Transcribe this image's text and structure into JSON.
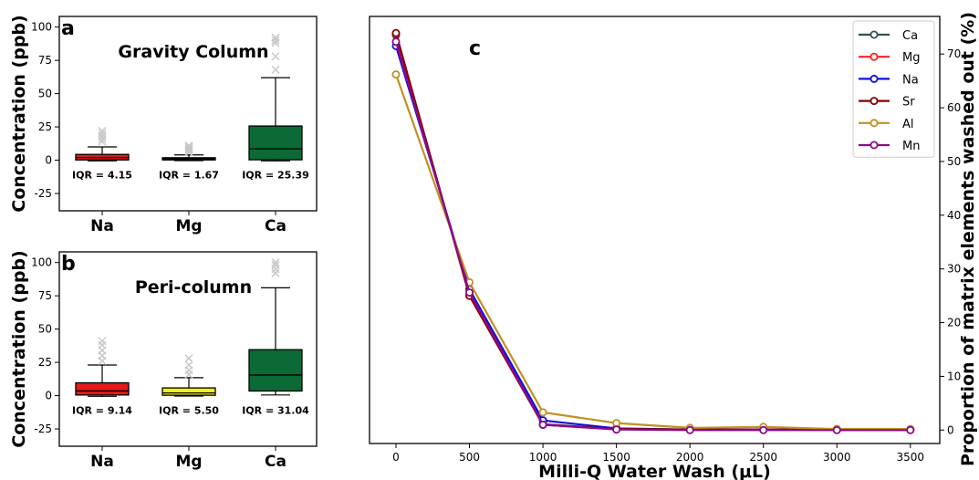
{
  "chart_data": [
    {
      "panel": "a",
      "type": "box",
      "title": "Gravity Column",
      "ylabel": "Concentration (ppb)",
      "ylim": [
        -38,
        108
      ],
      "yticks": [
        "-25",
        "0",
        "25",
        "50",
        "75",
        "100"
      ],
      "categories": [
        {
          "name": "Na",
          "color": "#e41a1c",
          "q1": 0.2,
          "median": 2.0,
          "q3": 4.35,
          "whisker_low": -0.5,
          "whisker_high": 10.0,
          "outliers": [
            14,
            16,
            18,
            20,
            22
          ],
          "iqr_label": "IQR = 4.15"
        },
        {
          "name": "Mg",
          "color": "#111111",
          "q1": 0.2,
          "median": 0.8,
          "q3": 1.87,
          "whisker_low": -0.3,
          "whisker_high": 4.0,
          "outliers": [
            6,
            7,
            8,
            9,
            10,
            11
          ],
          "iqr_label": "IQR = 1.67"
        },
        {
          "name": "Ca",
          "color": "#0b6a35",
          "q1": 0.3,
          "median": 8.5,
          "q3": 25.69,
          "whisker_low": -0.5,
          "whisker_high": 62.0,
          "outliers": [
            68,
            78,
            88,
            90,
            92
          ],
          "iqr_label": "IQR = 25.39"
        }
      ]
    },
    {
      "panel": "b",
      "type": "box",
      "title": "Peri-column",
      "ylabel": "Concentration (ppb)",
      "ylim": [
        -38,
        108
      ],
      "yticks": [
        "-25",
        "0",
        "25",
        "50",
        "75",
        "100"
      ],
      "categories": [
        {
          "name": "Na",
          "color": "#e41a1c",
          "q1": 0.5,
          "median": 3.5,
          "q3": 9.64,
          "whisker_low": -0.5,
          "whisker_high": 23.0,
          "outliers": [
            26,
            30,
            34,
            38,
            41
          ],
          "iqr_label": "IQR = 9.14"
        },
        {
          "name": "Mg",
          "color": "#f5f014",
          "q1": 0.3,
          "median": 2.0,
          "q3": 5.8,
          "whisker_low": -0.3,
          "whisker_high": 13.5,
          "outliers": [
            16,
            19,
            23,
            28
          ],
          "iqr_label": "IQR = 5.50"
        },
        {
          "name": "Ca",
          "color": "#0b6a35",
          "q1": 3.5,
          "median": 15.5,
          "q3": 34.54,
          "whisker_low": 0.5,
          "whisker_high": 81.0,
          "outliers": [
            92,
            95,
            98,
            100
          ],
          "iqr_label": "IQR = 31.04"
        }
      ]
    },
    {
      "panel": "c",
      "type": "line",
      "xlabel": "Milli-Q Water Wash (μL)",
      "ylabel": "Proportion of matrix elements washed out (%)",
      "x": [
        0,
        500,
        1000,
        1500,
        2000,
        2500,
        3000,
        3500
      ],
      "xticks": [
        "0",
        "500",
        "1000",
        "1500",
        "2000",
        "2500",
        "3000",
        "3500"
      ],
      "yticks": [
        "0",
        "10",
        "20",
        "30",
        "40",
        "50",
        "60",
        "70"
      ],
      "xlim": [
        -180,
        3700
      ],
      "ylim": [
        -2.5,
        77
      ],
      "legend": "top-right",
      "series": [
        {
          "name": "Ca",
          "color": "#2f4f4f",
          "values": [
            73.5,
            25.2,
            1.1,
            0.2,
            0.1,
            0.1,
            0.05,
            0.05
          ]
        },
        {
          "name": "Mg",
          "color": "#ff2020",
          "values": [
            73.8,
            25.0,
            1.0,
            0.2,
            0.1,
            0.1,
            0.05,
            0.05
          ]
        },
        {
          "name": "Na",
          "color": "#1010e0",
          "values": [
            71.5,
            26.2,
            1.8,
            0.3,
            0.1,
            0.1,
            0.05,
            0.05
          ]
        },
        {
          "name": "Sr",
          "color": "#8b0000",
          "values": [
            73.9,
            25.0,
            1.0,
            0.2,
            0.1,
            0.1,
            0.05,
            0.05
          ]
        },
        {
          "name": "Al",
          "color": "#c29020",
          "values": [
            66.2,
            27.5,
            3.3,
            1.3,
            0.4,
            0.6,
            0.2,
            0.2
          ]
        },
        {
          "name": "Mn",
          "color": "#8b0a8b",
          "values": [
            72.3,
            25.6,
            1.0,
            0.1,
            0.0,
            0.0,
            0.0,
            0.0
          ]
        }
      ]
    }
  ]
}
